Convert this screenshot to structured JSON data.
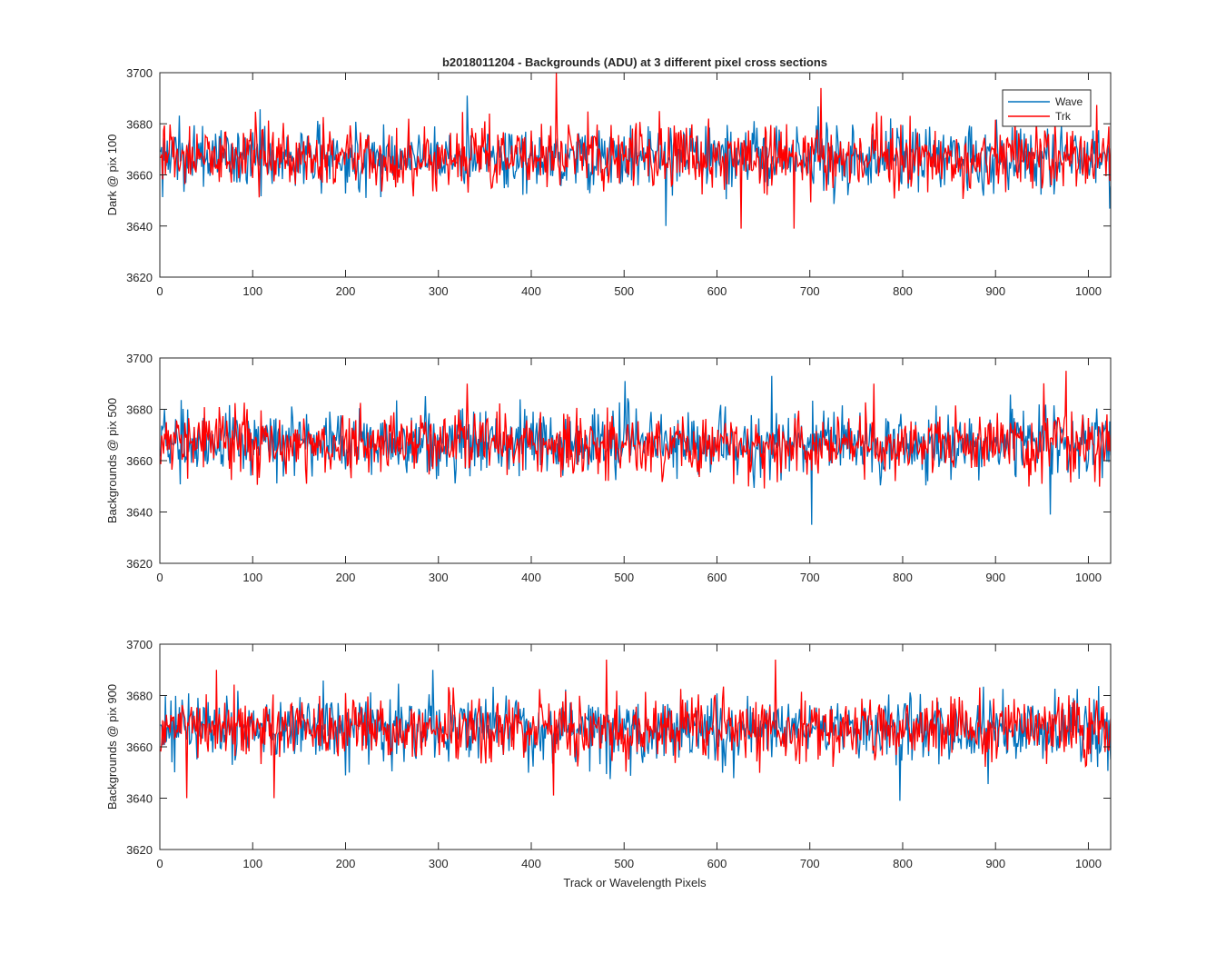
{
  "figure": {
    "title": "b2018011204 - Backgrounds (ADU) at 3 different pixel cross sections",
    "xlabel": "Track or Wavelength Pixels"
  },
  "legend": {
    "location": "top-right",
    "entries": [
      {
        "name": "Wave",
        "color": "#0072bd"
      },
      {
        "name": "Trk",
        "color": "#ff0000"
      }
    ]
  },
  "chart_data": [
    {
      "type": "line",
      "ylabel": "Dark @ pix 100",
      "xlim": [
        0,
        1024
      ],
      "ylim": [
        3620,
        3700
      ],
      "xticks": [
        0,
        100,
        200,
        300,
        400,
        500,
        600,
        700,
        800,
        900,
        1000
      ],
      "yticks": [
        3620,
        3640,
        3660,
        3680,
        3700
      ],
      "grid": false,
      "legend": true,
      "series": [
        {
          "name": "Wave",
          "color": "#0072bd",
          "mean": 3667,
          "range": [
            3643,
            3691
          ],
          "n_points": 1024
        },
        {
          "name": "Trk",
          "color": "#ff0000",
          "mean": 3667,
          "range": [
            3639,
            3700
          ],
          "n_points": 1024
        }
      ],
      "spikes": [
        {
          "series": "Trk",
          "x": 426,
          "y": 3700
        },
        {
          "series": "Trk",
          "x": 711,
          "y": 3694
        },
        {
          "series": "Wave",
          "x": 330,
          "y": 3691
        },
        {
          "series": "Trk",
          "x": 682,
          "y": 3639
        },
        {
          "series": "Trk",
          "x": 625,
          "y": 3639
        },
        {
          "series": "Wave",
          "x": 544,
          "y": 3640
        }
      ]
    },
    {
      "type": "line",
      "ylabel": "Backgrounds @ pix 500",
      "xlim": [
        0,
        1024
      ],
      "ylim": [
        3620,
        3700
      ],
      "xticks": [
        0,
        100,
        200,
        300,
        400,
        500,
        600,
        700,
        800,
        900,
        1000
      ],
      "yticks": [
        3620,
        3640,
        3660,
        3680,
        3700
      ],
      "grid": false,
      "legend": false,
      "series": [
        {
          "name": "Wave",
          "color": "#0072bd",
          "mean": 3667,
          "range": [
            3635,
            3693
          ],
          "n_points": 1024
        },
        {
          "name": "Trk",
          "color": "#ff0000",
          "mean": 3667,
          "range": [
            3643,
            3695
          ],
          "n_points": 1024
        }
      ],
      "spikes": [
        {
          "series": "Wave",
          "x": 701,
          "y": 3635
        },
        {
          "series": "Wave",
          "x": 658,
          "y": 3693
        },
        {
          "series": "Trk",
          "x": 975,
          "y": 3695
        },
        {
          "series": "Wave",
          "x": 500,
          "y": 3691
        },
        {
          "series": "Trk",
          "x": 330,
          "y": 3690
        },
        {
          "series": "Trk",
          "x": 768,
          "y": 3690
        },
        {
          "series": "Wave",
          "x": 958,
          "y": 3639
        }
      ]
    },
    {
      "type": "line",
      "ylabel": "Backgrounds @ pix 900",
      "xlim": [
        0,
        1024
      ],
      "ylim": [
        3620,
        3700
      ],
      "xticks": [
        0,
        100,
        200,
        300,
        400,
        500,
        600,
        700,
        800,
        900,
        1000
      ],
      "yticks": [
        3620,
        3640,
        3660,
        3680,
        3700
      ],
      "grid": false,
      "legend": false,
      "series": [
        {
          "name": "Wave",
          "color": "#0072bd",
          "mean": 3667,
          "range": [
            3639,
            3690
          ],
          "n_points": 1024
        },
        {
          "name": "Trk",
          "color": "#ff0000",
          "mean": 3667,
          "range": [
            3640,
            3694
          ],
          "n_points": 1024
        }
      ],
      "spikes": [
        {
          "series": "Trk",
          "x": 662,
          "y": 3694
        },
        {
          "series": "Trk",
          "x": 480,
          "y": 3694
        },
        {
          "series": "Trk",
          "x": 60,
          "y": 3690
        },
        {
          "series": "Wave",
          "x": 293,
          "y": 3690
        },
        {
          "series": "Wave",
          "x": 796,
          "y": 3639
        },
        {
          "series": "Trk",
          "x": 28,
          "y": 3640
        },
        {
          "series": "Trk",
          "x": 122,
          "y": 3640
        },
        {
          "series": "Trk",
          "x": 423,
          "y": 3641
        }
      ]
    }
  ]
}
